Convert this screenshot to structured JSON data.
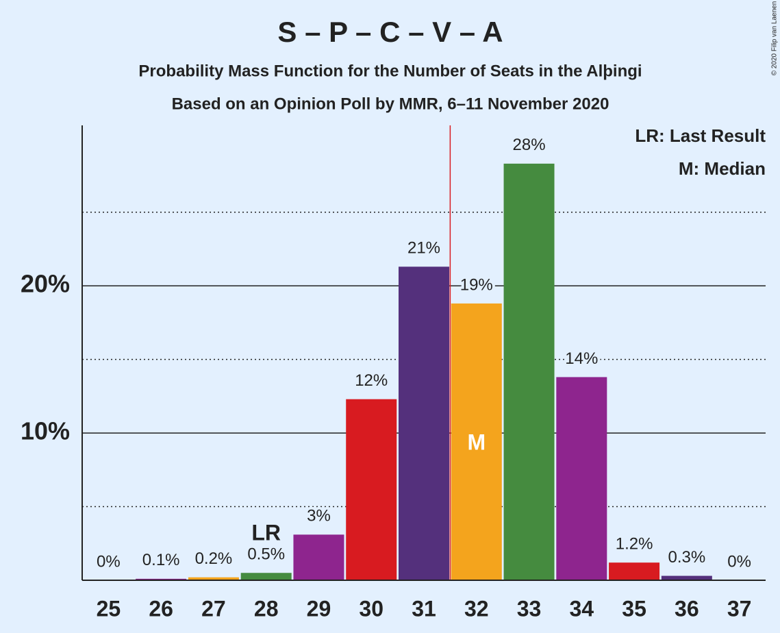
{
  "chart_data": {
    "type": "bar",
    "title": "S – P – C – V – A",
    "subtitle": "Probability Mass Function for the Number of Seats in the Alþingi",
    "subtitle2": "Based on an Opinion Poll by MMR, 6–11 November 2020",
    "categories": [
      "25",
      "26",
      "27",
      "28",
      "29",
      "30",
      "31",
      "32",
      "33",
      "34",
      "35",
      "36",
      "37"
    ],
    "values": [
      0,
      0.1,
      0.2,
      0.5,
      3.1,
      12.3,
      21.3,
      18.8,
      28.3,
      13.8,
      1.2,
      0.3,
      0
    ],
    "value_labels": [
      "0%",
      "0.1%",
      "0.2%",
      "0.5%",
      "3%",
      "12%",
      "21%",
      "19%",
      "28%",
      "14%",
      "1.2%",
      "0.3%",
      "0%"
    ],
    "colors": [
      "#d81b20",
      "#8e258e",
      "#f4a41d",
      "#458b3f",
      "#8e258e",
      "#d81b20",
      "#54307c",
      "#f4a41d",
      "#458b3f",
      "#8e258e",
      "#d81b20",
      "#54307c",
      "#f4a41d"
    ],
    "ylim": [
      0,
      30.9
    ],
    "yticks": [
      {
        "value": 10,
        "label": "10%"
      },
      {
        "value": 20,
        "label": "20%"
      }
    ],
    "minor_yticks": [
      5,
      15,
      25
    ],
    "grid": true,
    "annotations": [
      {
        "text": "LR",
        "category": "28"
      },
      {
        "text": "M",
        "category": "32"
      }
    ],
    "median_line_color": "#d81b20",
    "legend": [
      "LR: Last Result",
      "M: Median"
    ],
    "legend_position": "top-right",
    "credit": "© 2020 Filip van Laenen"
  }
}
